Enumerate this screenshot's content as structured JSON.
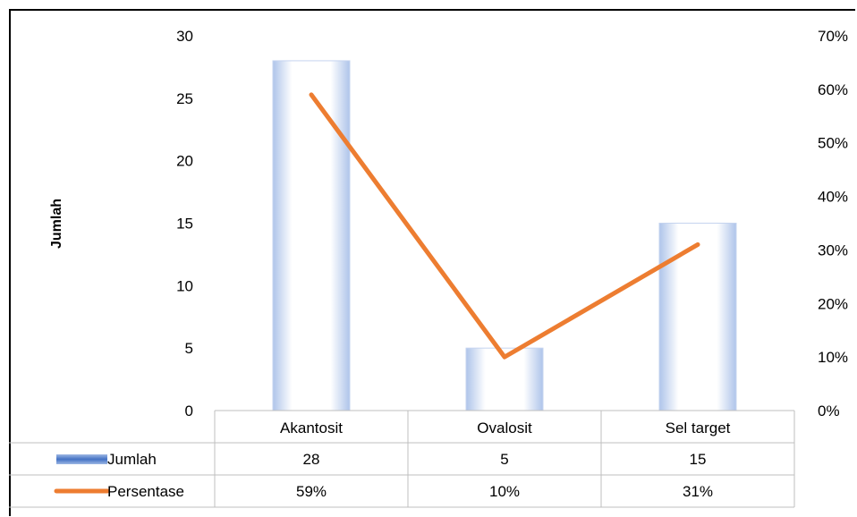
{
  "chart_data": {
    "type": "bar",
    "categories": [
      "Akantosit",
      "Ovalosit",
      "Sel target"
    ],
    "series": [
      {
        "name": "Jumlah",
        "type": "bar",
        "axis": "left",
        "values": [
          28,
          5,
          15
        ],
        "display": [
          "28",
          "5",
          "15"
        ]
      },
      {
        "name": "Persentase",
        "type": "line",
        "axis": "right",
        "values": [
          0.59,
          0.1,
          0.31
        ],
        "display": [
          "59%",
          "10%",
          "31%"
        ]
      }
    ],
    "ylabel": "Jumlah",
    "ylim": [
      0,
      30
    ],
    "y_ticks": [
      0,
      5,
      10,
      15,
      20,
      25,
      30
    ],
    "y2lim": [
      0,
      0.7
    ],
    "y2_ticks": [
      "0%",
      "10%",
      "20%",
      "30%",
      "40%",
      "50%",
      "60%",
      "70%"
    ],
    "grid": false,
    "legend": "data-table",
    "colors": {
      "bar_edge": "#c5d4ef",
      "bar_fill": "#f6f9ff",
      "line": "#ed7d31"
    }
  }
}
